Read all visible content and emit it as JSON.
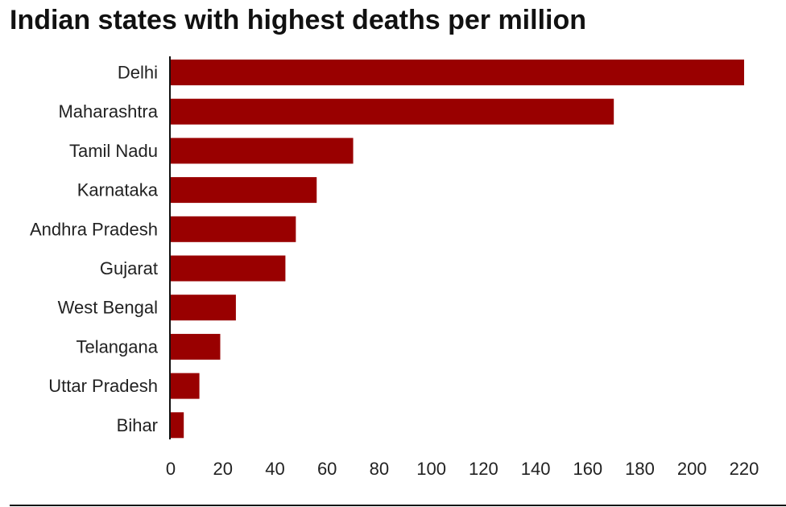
{
  "chart_data": {
    "type": "bar",
    "orientation": "horizontal",
    "title": "Indian states with highest deaths per million",
    "xlabel": "",
    "ylabel": "",
    "categories": [
      "Delhi",
      "Maharashtra",
      "Tamil Nadu",
      "Karnataka",
      "Andhra Pradesh",
      "Gujarat",
      "West Bengal",
      "Telangana",
      "Uttar Pradesh",
      "Bihar"
    ],
    "values": [
      220,
      170,
      70,
      56,
      48,
      44,
      25,
      19,
      11,
      5
    ],
    "xlim": [
      0,
      220
    ],
    "xticks": [
      "0",
      "20",
      "40",
      "60",
      "80",
      "100",
      "120",
      "140",
      "160",
      "180",
      "200",
      "220"
    ],
    "grid": false,
    "legend": "none",
    "bar_color": "#990000"
  }
}
